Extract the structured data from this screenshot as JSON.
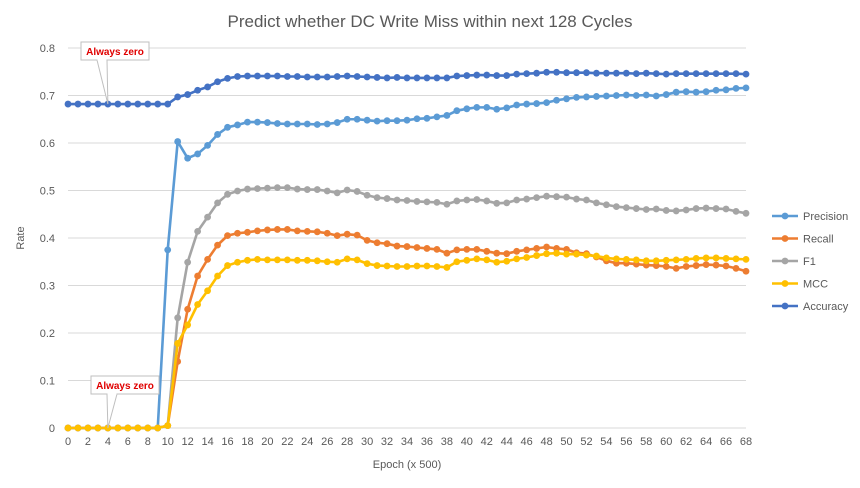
{
  "chart_data": {
    "type": "line",
    "title": "Predict whether DC Write Miss within next 128 Cycles",
    "xlabel": "Epoch (x 500)",
    "ylabel": "Rate",
    "xlim": [
      0,
      68
    ],
    "ylim": [
      0,
      0.8
    ],
    "y_ticks": [
      "0",
      "0.1",
      "0.2",
      "0.3",
      "0.4",
      "0.5",
      "0.6",
      "0.7",
      "0.8"
    ],
    "x_ticks": [
      "0",
      "2",
      "4",
      "6",
      "8",
      "10",
      "12",
      "14",
      "16",
      "18",
      "20",
      "22",
      "24",
      "26",
      "28",
      "30",
      "32",
      "34",
      "36",
      "38",
      "40",
      "42",
      "44",
      "46",
      "48",
      "50",
      "52",
      "54",
      "56",
      "58",
      "60",
      "62",
      "64",
      "66",
      "68"
    ],
    "grid": true,
    "legend_position": "right",
    "series": [
      {
        "name": "Precision",
        "color": "#5b9bd5",
        "values": [
          0,
          0,
          0,
          0,
          0,
          0,
          0,
          0,
          0,
          0,
          0.375,
          0.603,
          0.568,
          0.577,
          0.595,
          0.618,
          0.633,
          0.638,
          0.644,
          0.644,
          0.643,
          0.641,
          0.64,
          0.64,
          0.64,
          0.639,
          0.64,
          0.643,
          0.65,
          0.65,
          0.648,
          0.646,
          0.647,
          0.647,
          0.648,
          0.651,
          0.652,
          0.655,
          0.658,
          0.668,
          0.672,
          0.675,
          0.675,
          0.671,
          0.674,
          0.68,
          0.682,
          0.683,
          0.685,
          0.69,
          0.693,
          0.696,
          0.697,
          0.698,
          0.699,
          0.7,
          0.701,
          0.7,
          0.701,
          0.699,
          0.702,
          0.707,
          0.708,
          0.707,
          0.708,
          0.711,
          0.712,
          0.715,
          0.716
        ]
      },
      {
        "name": "Recall",
        "color": "#ed7d31",
        "values": [
          0,
          0,
          0,
          0,
          0,
          0,
          0,
          0,
          0,
          0,
          0.005,
          0.14,
          0.25,
          0.32,
          0.355,
          0.385,
          0.405,
          0.41,
          0.412,
          0.415,
          0.417,
          0.418,
          0.418,
          0.415,
          0.414,
          0.413,
          0.41,
          0.405,
          0.408,
          0.406,
          0.395,
          0.39,
          0.388,
          0.383,
          0.382,
          0.38,
          0.378,
          0.376,
          0.368,
          0.375,
          0.376,
          0.376,
          0.372,
          0.368,
          0.367,
          0.372,
          0.375,
          0.378,
          0.381,
          0.378,
          0.376,
          0.369,
          0.367,
          0.36,
          0.352,
          0.347,
          0.347,
          0.345,
          0.343,
          0.342,
          0.34,
          0.336,
          0.34,
          0.342,
          0.344,
          0.343,
          0.341,
          0.336,
          0.33
        ]
      },
      {
        "name": "F1",
        "color": "#a5a5a5",
        "values": [
          0,
          0,
          0,
          0,
          0,
          0,
          0,
          0,
          0,
          0,
          0.005,
          0.232,
          0.349,
          0.414,
          0.444,
          0.474,
          0.492,
          0.499,
          0.503,
          0.504,
          0.505,
          0.506,
          0.506,
          0.503,
          0.502,
          0.502,
          0.499,
          0.495,
          0.501,
          0.498,
          0.49,
          0.485,
          0.483,
          0.48,
          0.479,
          0.477,
          0.476,
          0.475,
          0.471,
          0.478,
          0.48,
          0.481,
          0.478,
          0.473,
          0.474,
          0.48,
          0.482,
          0.485,
          0.488,
          0.487,
          0.486,
          0.482,
          0.48,
          0.474,
          0.47,
          0.466,
          0.464,
          0.462,
          0.46,
          0.461,
          0.458,
          0.457,
          0.459,
          0.462,
          0.463,
          0.462,
          0.461,
          0.456,
          0.452
        ]
      },
      {
        "name": "MCC",
        "color": "#ffc000",
        "values": [
          0,
          0,
          0,
          0,
          0,
          0,
          0,
          0,
          0,
          0,
          0.005,
          0.178,
          0.217,
          0.26,
          0.289,
          0.32,
          0.342,
          0.349,
          0.353,
          0.355,
          0.354,
          0.354,
          0.354,
          0.353,
          0.353,
          0.352,
          0.35,
          0.349,
          0.356,
          0.354,
          0.346,
          0.342,
          0.341,
          0.34,
          0.34,
          0.341,
          0.341,
          0.34,
          0.338,
          0.35,
          0.353,
          0.356,
          0.354,
          0.349,
          0.351,
          0.356,
          0.359,
          0.363,
          0.367,
          0.368,
          0.366,
          0.366,
          0.364,
          0.362,
          0.358,
          0.356,
          0.355,
          0.354,
          0.352,
          0.352,
          0.353,
          0.354,
          0.355,
          0.357,
          0.358,
          0.358,
          0.357,
          0.356,
          0.355
        ]
      },
      {
        "name": "Accuracy",
        "color": "#4472c4",
        "values": [
          0.682,
          0.682,
          0.682,
          0.682,
          0.682,
          0.682,
          0.682,
          0.682,
          0.682,
          0.682,
          0.682,
          0.697,
          0.702,
          0.711,
          0.718,
          0.729,
          0.736,
          0.74,
          0.741,
          0.741,
          0.741,
          0.741,
          0.74,
          0.74,
          0.739,
          0.739,
          0.739,
          0.74,
          0.741,
          0.74,
          0.739,
          0.738,
          0.737,
          0.738,
          0.737,
          0.737,
          0.737,
          0.737,
          0.737,
          0.741,
          0.742,
          0.743,
          0.743,
          0.742,
          0.742,
          0.745,
          0.746,
          0.747,
          0.749,
          0.749,
          0.748,
          0.748,
          0.748,
          0.747,
          0.747,
          0.747,
          0.747,
          0.746,
          0.747,
          0.746,
          0.745,
          0.746,
          0.746,
          0.746,
          0.746,
          0.746,
          0.746,
          0.746,
          0.745
        ]
      }
    ],
    "annotations": [
      {
        "text": "Always zero",
        "series": "Accuracy",
        "x": 4,
        "y": 0.682
      },
      {
        "text": "Always zero",
        "series": "Precision",
        "x": 4,
        "y": 0
      }
    ]
  }
}
